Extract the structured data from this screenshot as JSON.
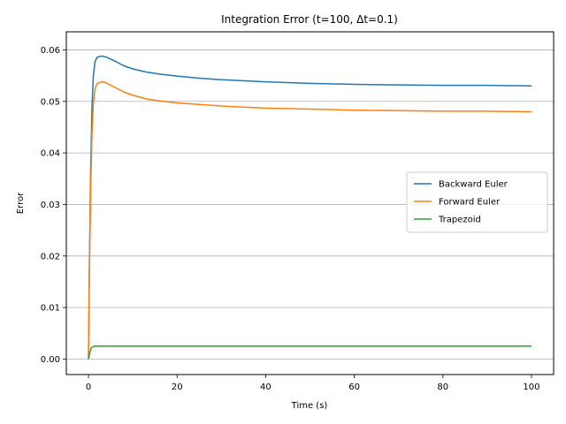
{
  "chart_data": {
    "type": "line",
    "title": "Integration Error (t=100, Δt=0.1)",
    "xlabel": "Time (s)",
    "ylabel": "Error",
    "xlim": [
      -5,
      105
    ],
    "ylim": [
      -0.003,
      0.0635
    ],
    "xticks": [
      0,
      20,
      40,
      60,
      80,
      100
    ],
    "yticks": [
      0.0,
      0.01,
      0.02,
      0.03,
      0.04,
      0.05,
      0.06
    ],
    "ytick_labels": [
      "0.00",
      "0.01",
      "0.02",
      "0.03",
      "0.04",
      "0.05",
      "0.06"
    ],
    "xtick_labels": [
      "0",
      "20",
      "40",
      "60",
      "80",
      "100"
    ],
    "grid": "horizontal",
    "legend_position": "center-right",
    "series": [
      {
        "name": "Backward Euler",
        "color": "#1f77b4",
        "points": [
          [
            0,
            0
          ],
          [
            0.2,
            0.018
          ],
          [
            0.5,
            0.037
          ],
          [
            0.8,
            0.049
          ],
          [
            1.1,
            0.055
          ],
          [
            1.5,
            0.0578
          ],
          [
            2,
            0.0586
          ],
          [
            3,
            0.0588
          ],
          [
            4,
            0.0586
          ],
          [
            6,
            0.0578
          ],
          [
            8,
            0.0569
          ],
          [
            10,
            0.0563
          ],
          [
            13,
            0.0557
          ],
          [
            16,
            0.0553
          ],
          [
            20,
            0.0549
          ],
          [
            25,
            0.0545
          ],
          [
            30,
            0.0542
          ],
          [
            40,
            0.0538
          ],
          [
            50,
            0.0535
          ],
          [
            60,
            0.0533
          ],
          [
            70,
            0.0532
          ],
          [
            80,
            0.0531
          ],
          [
            90,
            0.0531
          ],
          [
            100,
            0.053
          ]
        ]
      },
      {
        "name": "Forward Euler",
        "color": "#ff7f0e",
        "points": [
          [
            0,
            0
          ],
          [
            0.2,
            0.016
          ],
          [
            0.5,
            0.033
          ],
          [
            0.8,
            0.044
          ],
          [
            1.1,
            0.0495
          ],
          [
            1.5,
            0.0525
          ],
          [
            2,
            0.0535
          ],
          [
            3,
            0.0538
          ],
          [
            4,
            0.0536
          ],
          [
            6,
            0.0527
          ],
          [
            8,
            0.0518
          ],
          [
            10,
            0.0512
          ],
          [
            13,
            0.0505
          ],
          [
            16,
            0.0501
          ],
          [
            20,
            0.0497
          ],
          [
            25,
            0.0494
          ],
          [
            30,
            0.0491
          ],
          [
            40,
            0.0487
          ],
          [
            50,
            0.0485
          ],
          [
            60,
            0.0483
          ],
          [
            70,
            0.0482
          ],
          [
            80,
            0.0481
          ],
          [
            90,
            0.0481
          ],
          [
            100,
            0.048
          ]
        ]
      },
      {
        "name": "Trapezoid",
        "color": "#2ca02c",
        "points": [
          [
            0,
            0
          ],
          [
            0.3,
            0.0012
          ],
          [
            0.6,
            0.0021
          ],
          [
            1,
            0.0024
          ],
          [
            1.5,
            0.0025
          ],
          [
            3,
            0.0025
          ],
          [
            20,
            0.0025
          ],
          [
            40,
            0.0025
          ],
          [
            60,
            0.0025
          ],
          [
            80,
            0.0025
          ],
          [
            100,
            0.0025
          ]
        ]
      }
    ]
  }
}
